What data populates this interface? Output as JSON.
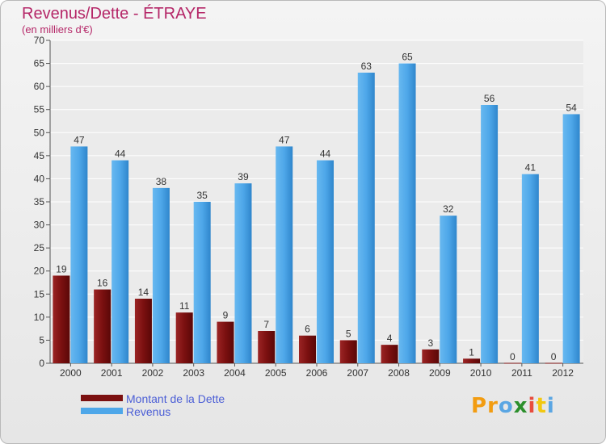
{
  "title": "Revenus/Dette - ÉTRAYE",
  "subtitle": "(en milliers d'€)",
  "logo": {
    "letters": [
      "P",
      "r",
      "o",
      "x",
      "i",
      "t",
      "i"
    ],
    "colors": [
      "#f29c11",
      "#f29c11",
      "#5aa6e3",
      "#2c8f2c",
      "#e84c3d",
      "#f2c811",
      "#5aa6e3"
    ]
  },
  "colors": {
    "dette": "#7b1010",
    "revenus": "#4ea7e9",
    "title": "#b52768",
    "legend_text": "#4b5ed6"
  },
  "chart_data": {
    "type": "bar",
    "title": "Revenus/Dette - ÉTRAYE",
    "subtitle": "(en milliers d'€)",
    "xlabel": "",
    "ylabel": "",
    "ylim": [
      0,
      70
    ],
    "yticks": [
      0,
      5,
      10,
      15,
      20,
      25,
      30,
      35,
      40,
      45,
      50,
      55,
      60,
      65,
      70
    ],
    "grid": true,
    "legend_position": "bottom-left",
    "categories": [
      "2000",
      "2001",
      "2002",
      "2003",
      "2004",
      "2005",
      "2006",
      "2007",
      "2008",
      "2009",
      "2010",
      "2011",
      "2012"
    ],
    "series": [
      {
        "name": "Montant de la Dette",
        "color": "#7b1010",
        "values": [
          19,
          16,
          14,
          11,
          9,
          7,
          6,
          5,
          4,
          3,
          1,
          0,
          0
        ]
      },
      {
        "name": "Revenus",
        "color": "#4ea7e9",
        "values": [
          47,
          44,
          38,
          35,
          39,
          47,
          44,
          63,
          65,
          32,
          56,
          41,
          54
        ]
      }
    ]
  }
}
